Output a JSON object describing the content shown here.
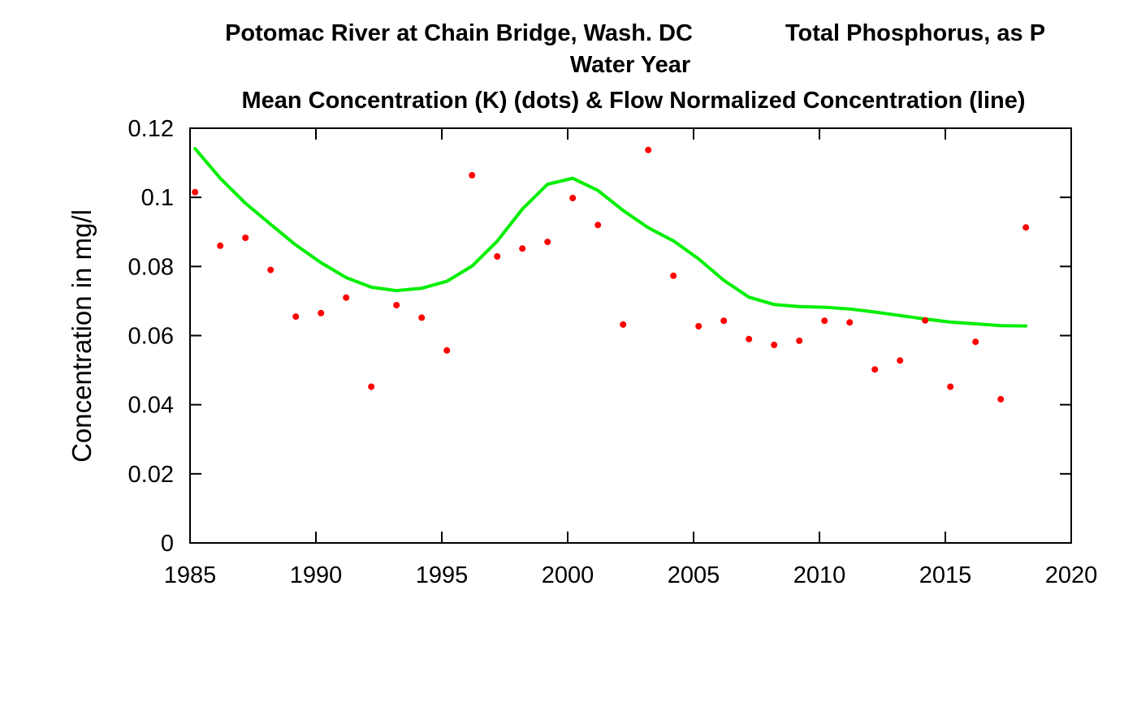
{
  "chart_data": {
    "type": "scatter",
    "title_line1_left": "Potomac River at Chain Bridge, Wash. DC",
    "title_line1_right": "Total Phosphorus, as P",
    "title_line2": "Water Year",
    "title_line3": "Mean Concentration (K) (dots) & Flow Normalized Concentration (line)",
    "xlabel": "",
    "ylabel": "Concentration in mg/l",
    "xlim": [
      1985,
      2020
    ],
    "ylim": [
      0,
      0.12
    ],
    "x_ticks": [
      "1985",
      "1990",
      "1995",
      "2000",
      "2005",
      "2010",
      "2015",
      "2020"
    ],
    "y_ticks": [
      "0",
      "0.02",
      "0.04",
      "0.06",
      "0.08",
      "0.1",
      "0.12"
    ],
    "grid": false,
    "series": [
      {
        "mark": "dots",
        "color": "#ff0000",
        "x": [
          1985.2,
          1986.2,
          1987.2,
          1988.2,
          1989.2,
          1990.2,
          1991.2,
          1992.2,
          1993.2,
          1994.2,
          1995.2,
          1996.2,
          1997.2,
          1998.2,
          1999.2,
          2000.2,
          2001.2,
          2002.2,
          2003.2,
          2004.2,
          2005.2,
          2006.2,
          2007.2,
          2008.2,
          2009.2,
          2010.2,
          2011.2,
          2012.2,
          2013.2,
          2014.2,
          2015.2,
          2016.2,
          2017.2,
          2018.2
        ],
        "y": [
          0.1015,
          0.086,
          0.0883,
          0.079,
          0.0655,
          0.0665,
          0.071,
          0.0452,
          0.0688,
          0.0652,
          0.0557,
          0.1064,
          0.0829,
          0.0852,
          0.0871,
          0.0998,
          0.092,
          0.0632,
          0.1137,
          0.0773,
          0.0627,
          0.0643,
          0.059,
          0.0573,
          0.0585,
          0.0643,
          0.0638,
          0.0502,
          0.0528,
          0.0644,
          0.0452,
          0.0582,
          0.0416,
          0.0913
        ]
      },
      {
        "mark": "line",
        "color": "#00ee00",
        "x": [
          1985.2,
          1986.2,
          1987.2,
          1988.2,
          1989.2,
          1990.2,
          1991.2,
          1992.2,
          1993.2,
          1994.2,
          1995.2,
          1996.2,
          1997.2,
          1998.2,
          1999.2,
          2000.2,
          2001.2,
          2002.2,
          2003.2,
          2004.2,
          2005.2,
          2006.2,
          2007.2,
          2008.2,
          2009.2,
          2010.2,
          2011.2,
          2012.2,
          2013.2,
          2014.2,
          2015.2,
          2016.2,
          2017.2,
          2018.2
        ],
        "y": [
          0.1141,
          0.1055,
          0.0983,
          0.0922,
          0.0862,
          0.0811,
          0.0768,
          0.074,
          0.073,
          0.0737,
          0.0757,
          0.0801,
          0.0873,
          0.0966,
          0.1038,
          0.1055,
          0.102,
          0.0962,
          0.0912,
          0.0874,
          0.0822,
          0.076,
          0.0711,
          0.069,
          0.0684,
          0.0682,
          0.0677,
          0.0668,
          0.0658,
          0.0648,
          0.0639,
          0.0634,
          0.0629,
          0.0628
        ]
      }
    ]
  }
}
